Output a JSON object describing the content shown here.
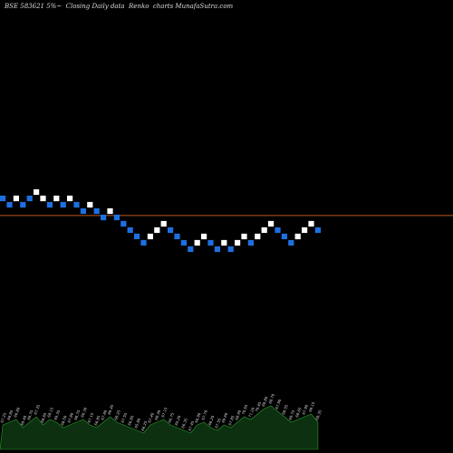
{
  "chart_data": {
    "type": "renko",
    "title": "BSE 583621 5%~  Closing Daily data  Renko  charts MunafaSutra.com",
    "box_direction": [
      "down",
      "down",
      "up",
      "down",
      "down",
      "up",
      "up",
      "down",
      "up",
      "down",
      "up",
      "down",
      "down",
      "up",
      "down",
      "down",
      "up",
      "down",
      "down",
      "down",
      "down",
      "down",
      "up",
      "up",
      "up",
      "down",
      "down",
      "down",
      "down",
      "up",
      "up",
      "down",
      "down",
      "up",
      "down",
      "up",
      "up",
      "down",
      "up",
      "up",
      "up",
      "down",
      "down",
      "down",
      "up",
      "up",
      "up",
      "down"
    ],
    "box_level": [
      10,
      9,
      10,
      9,
      10,
      11,
      10,
      9,
      10,
      9,
      10,
      9,
      8,
      9,
      8,
      7,
      8,
      7,
      6,
      5,
      4,
      3,
      4,
      5,
      6,
      5,
      4,
      3,
      2,
      3,
      4,
      3,
      2,
      3,
      2,
      3,
      4,
      3,
      4,
      5,
      6,
      5,
      4,
      3,
      4,
      5,
      6,
      5
    ],
    "reference_line_level": 7.3,
    "colors": {
      "background": "#000000",
      "up_box": "#ffffff",
      "down_box": "#1e6fe0",
      "reference_line": "#c05a1e",
      "volume_area": "#0c3010",
      "volume_edge": "#2e9a2e",
      "text": "#dddddd"
    },
    "volume_relative": [
      0.45,
      0.5,
      0.55,
      0.4,
      0.5,
      0.6,
      0.45,
      0.55,
      0.5,
      0.4,
      0.45,
      0.5,
      0.55,
      0.45,
      0.4,
      0.5,
      0.6,
      0.5,
      0.45,
      0.4,
      0.35,
      0.3,
      0.45,
      0.5,
      0.55,
      0.45,
      0.4,
      0.35,
      0.3,
      0.45,
      0.5,
      0.4,
      0.35,
      0.45,
      0.4,
      0.5,
      0.6,
      0.55,
      0.65,
      0.75,
      0.8,
      0.7,
      0.6,
      0.5,
      0.55,
      0.6,
      0.65,
      0.5
    ],
    "volume_labels": [
      "67.25",
      "68.85",
      "66.80",
      "69.40",
      "68.75",
      "67.35",
      "68.65",
      "68.15",
      "69.35",
      "68.50",
      "67.80",
      "68.75",
      "66.30",
      "67.15",
      "66.85",
      "67.80",
      "69.45",
      "68.25",
      "67.55",
      "66.85",
      "65.80",
      "66.25",
      "67.40",
      "68.30",
      "67.15",
      "66.75",
      "65.20",
      "66.35",
      "67.45",
      "66.90",
      "67.70",
      "68.20",
      "67.55",
      "69.60",
      "67.85",
      "68.40",
      "70.55",
      "71.20",
      "70.45",
      "69.80",
      "68.70",
      "67.90",
      "68.55",
      "69.75",
      "68.65",
      "67.90",
      "69.15",
      "68.35"
    ]
  }
}
